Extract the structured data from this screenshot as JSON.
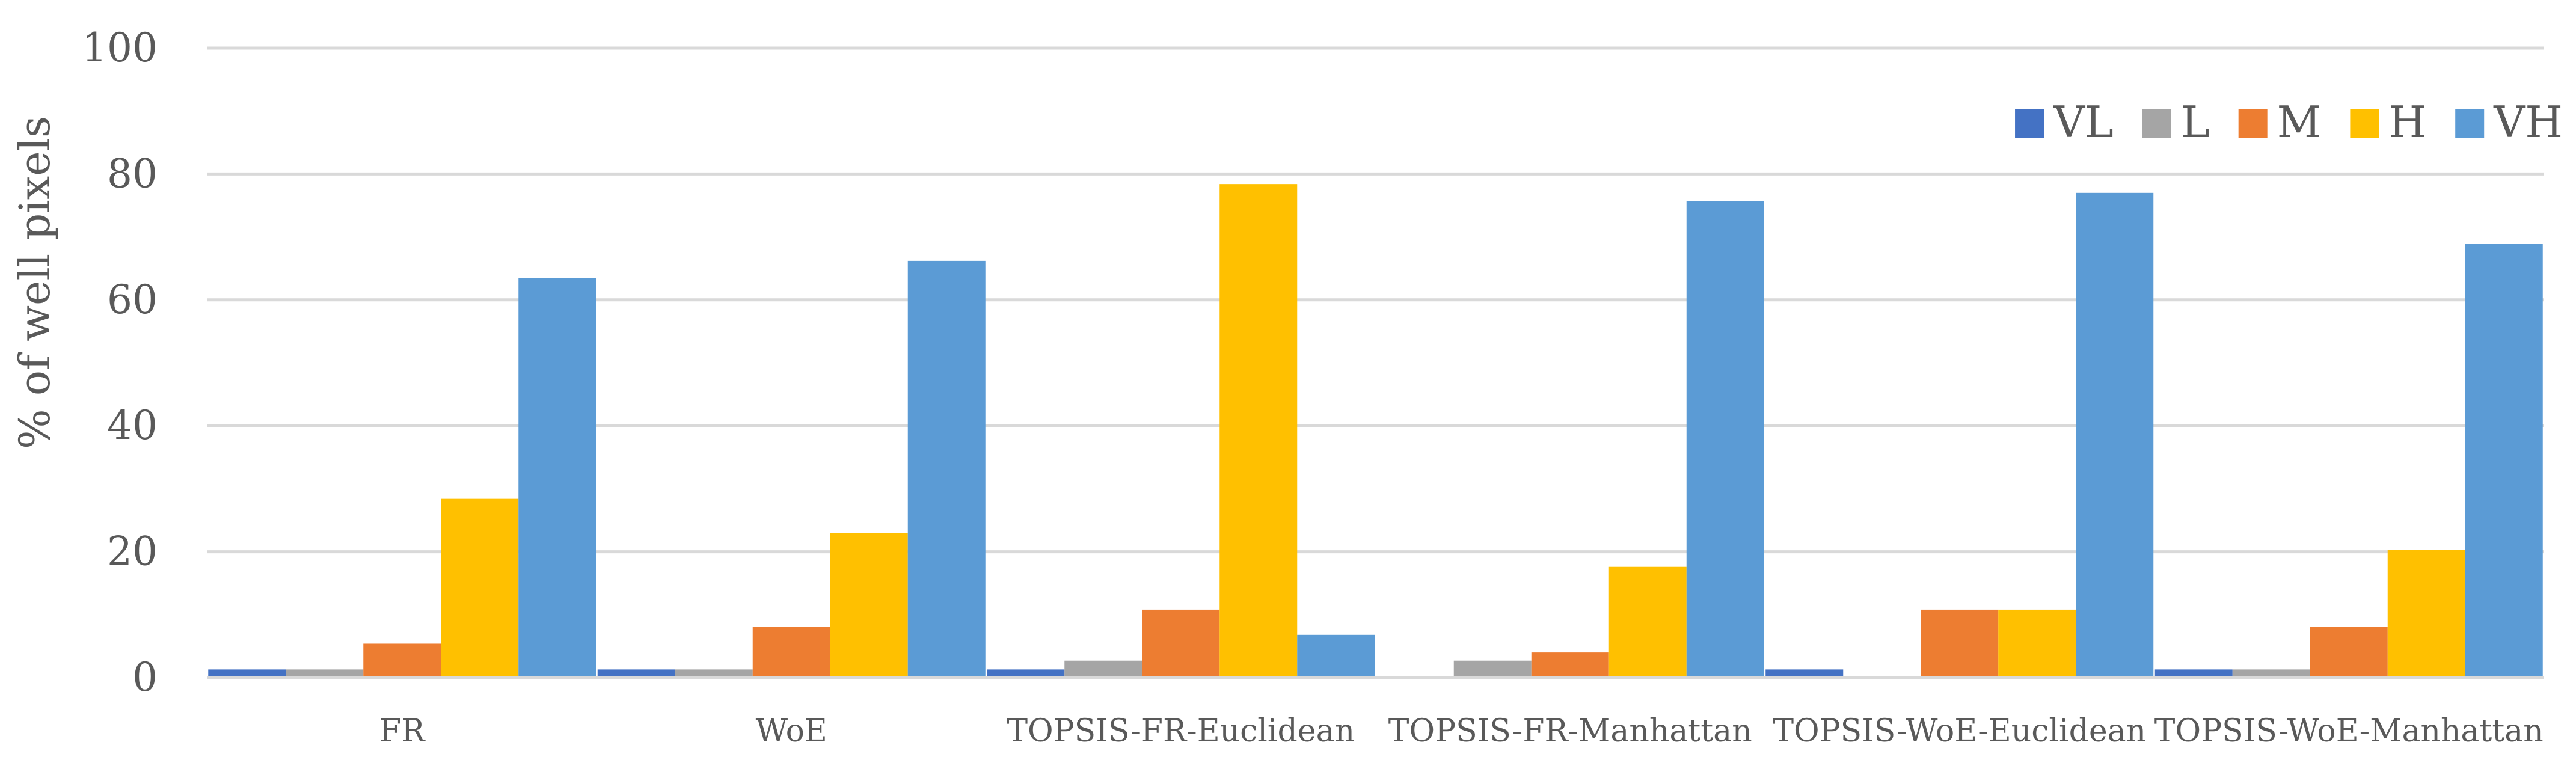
{
  "chart_data": {
    "type": "bar",
    "title": "",
    "xlabel": "",
    "ylabel": "% of well pixels",
    "ylim": [
      0,
      100
    ],
    "yticks": [
      "0",
      "20",
      "40",
      "60",
      "80",
      "100"
    ],
    "grid": true,
    "legend_position": "top-right",
    "categories": [
      "FR",
      "WoE",
      "TOPSIS-FR-Euclidean",
      "TOPSIS-FR-Manhattan",
      "TOPSIS-WoE-Euclidean",
      "TOPSIS-WoE-Manhattan"
    ],
    "series": [
      {
        "name": "VL",
        "color": "#4472C4",
        "values": [
          1.3,
          1.3,
          1.3,
          0,
          1.3,
          1.3
        ]
      },
      {
        "name": "L",
        "color": "#A5A5A5",
        "values": [
          1.3,
          1.3,
          2.7,
          2.7,
          0,
          1.3
        ]
      },
      {
        "name": "M",
        "color": "#ED7D31",
        "values": [
          5.4,
          8.1,
          10.8,
          4.0,
          10.8,
          8.1
        ]
      },
      {
        "name": "H",
        "color": "#FFC000",
        "values": [
          28.4,
          23.0,
          78.4,
          17.6,
          10.8,
          20.3
        ]
      },
      {
        "name": "VH",
        "color": "#5B9BD5",
        "values": [
          63.5,
          66.2,
          6.8,
          75.7,
          77.0,
          68.9
        ]
      }
    ]
  }
}
